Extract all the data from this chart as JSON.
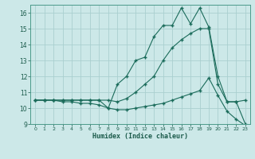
{
  "xlabel": "Humidex (Indice chaleur)",
  "bg_color": "#cce8e8",
  "grid_color": "#aacfcf",
  "line_color": "#1a6b5a",
  "xlim": [
    -0.5,
    23.5
  ],
  "ylim": [
    9,
    16.5
  ],
  "xticks": [
    0,
    1,
    2,
    3,
    4,
    5,
    6,
    7,
    8,
    9,
    10,
    11,
    12,
    13,
    14,
    15,
    16,
    17,
    18,
    19,
    20,
    21,
    22,
    23
  ],
  "yticks": [
    9,
    10,
    11,
    12,
    13,
    14,
    15,
    16
  ],
  "series1_x": [
    0,
    1,
    2,
    3,
    4,
    5,
    6,
    7,
    8,
    9,
    10,
    11,
    12,
    13,
    14,
    15,
    16,
    17,
    18,
    19,
    20,
    21,
    22,
    23
  ],
  "series1_y": [
    10.5,
    10.5,
    10.5,
    10.5,
    10.5,
    10.5,
    10.5,
    10.5,
    10.0,
    11.5,
    12.0,
    13.0,
    13.2,
    14.5,
    15.2,
    15.2,
    16.3,
    15.3,
    16.3,
    15.1,
    12.0,
    10.4,
    10.4,
    10.5
  ],
  "series2_x": [
    0,
    1,
    2,
    3,
    4,
    5,
    6,
    7,
    8,
    9,
    10,
    11,
    12,
    13,
    14,
    15,
    16,
    17,
    18,
    19,
    20,
    21,
    22,
    23
  ],
  "series2_y": [
    10.5,
    10.5,
    10.5,
    10.5,
    10.5,
    10.5,
    10.5,
    10.5,
    10.5,
    10.4,
    10.6,
    11.0,
    11.5,
    12.0,
    13.0,
    13.8,
    14.3,
    14.7,
    15.0,
    15.0,
    11.5,
    10.4,
    10.4,
    9.0
  ],
  "series3_x": [
    0,
    1,
    2,
    3,
    4,
    5,
    6,
    7,
    8,
    9,
    10,
    11,
    12,
    13,
    14,
    15,
    16,
    17,
    18,
    19,
    20,
    21,
    22,
    23
  ],
  "series3_y": [
    10.5,
    10.5,
    10.5,
    10.4,
    10.4,
    10.3,
    10.3,
    10.2,
    10.0,
    9.9,
    9.9,
    10.0,
    10.1,
    10.2,
    10.3,
    10.5,
    10.7,
    10.9,
    11.1,
    11.9,
    10.8,
    9.8,
    9.3,
    8.9
  ]
}
